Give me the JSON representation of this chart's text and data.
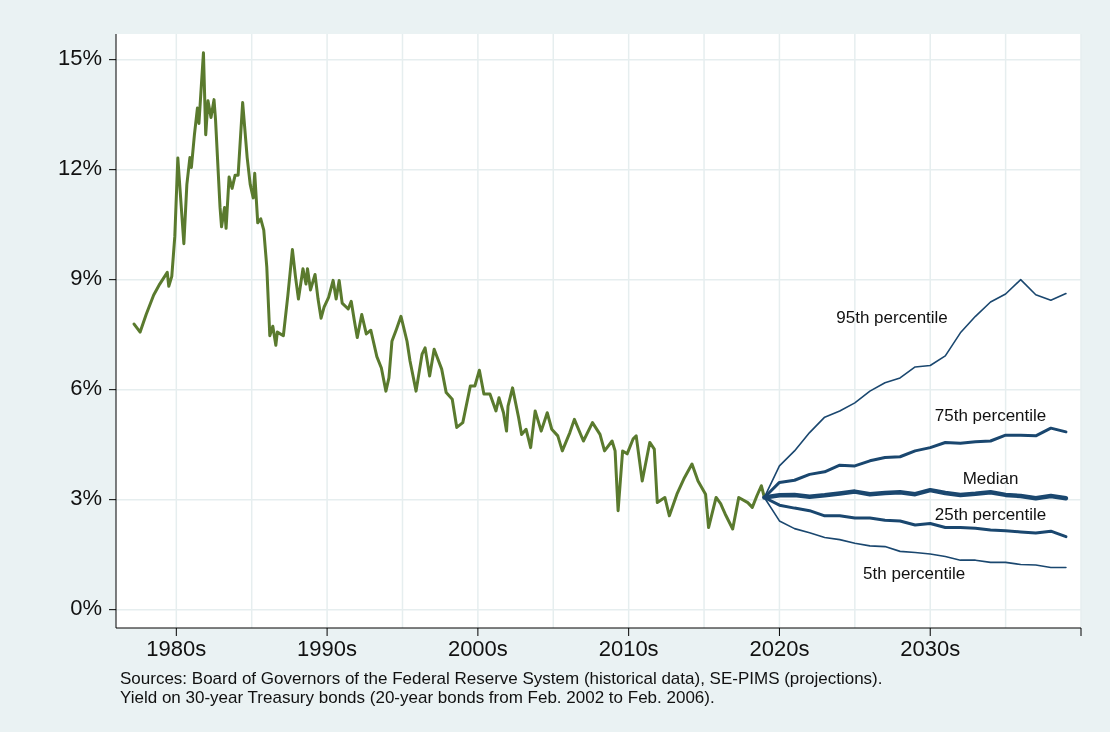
{
  "chart_data": {
    "type": "line",
    "xlim": [
      1976,
      2040
    ],
    "xticks": [
      {
        "value": 1980,
        "label": "1980s"
      },
      {
        "value": 1990,
        "label": "1990s"
      },
      {
        "value": 2000,
        "label": "2000s"
      },
      {
        "value": 2010,
        "label": "2010s"
      },
      {
        "value": 2020,
        "label": "2020s"
      },
      {
        "value": 2030,
        "label": "2030s"
      },
      {
        "value": 2040,
        "label": null
      }
    ],
    "ylim": [
      -0.5,
      15.7
    ],
    "yticks": [
      {
        "value": 0,
        "label": "0%"
      },
      {
        "value": 3,
        "label": "3%"
      },
      {
        "value": 6,
        "label": "6%"
      },
      {
        "value": 9,
        "label": "9%"
      },
      {
        "value": 12,
        "label": "12%"
      },
      {
        "value": 15,
        "label": "15%"
      }
    ],
    "grid": true,
    "series": [
      {
        "color": "#5a7a2e",
        "x": [
          1977.2,
          1977.6,
          1978.0,
          1978.5,
          1978.9,
          1979.4,
          1979.5,
          1979.7,
          1979.9,
          1980.1,
          1980.5,
          1980.7,
          1980.9,
          1981.0,
          1981.2,
          1981.4,
          1981.5,
          1981.8,
          1981.95,
          1982.1,
          1982.3,
          1982.5,
          1982.6,
          1982.9,
          1983.0,
          1983.2,
          1983.3,
          1983.5,
          1983.7,
          1983.9,
          1984.1,
          1984.4,
          1984.7,
          1984.9,
          1985.1,
          1985.2,
          1985.4,
          1985.6,
          1985.8,
          1986.0,
          1986.2,
          1986.4,
          1986.6,
          1986.7,
          1987.1,
          1987.4,
          1987.7,
          1987.9,
          1988.1,
          1988.4,
          1988.6,
          1988.7,
          1988.9,
          1989.2,
          1989.4,
          1989.6,
          1989.8,
          1990.1,
          1990.4,
          1990.6,
          1990.8,
          1991.0,
          1991.4,
          1991.6,
          1991.8,
          1992.0,
          1992.3,
          1992.6,
          1992.9,
          1993.3,
          1993.6,
          1993.9,
          1994.1,
          1994.3,
          1994.6,
          1994.9,
          1995.3,
          1995.5,
          1995.9,
          1996.3,
          1996.5,
          1996.8,
          1997.1,
          1997.6,
          1997.9,
          1998.3,
          1998.6,
          1999.0,
          1999.5,
          1999.8,
          2000.1,
          2000.4,
          2000.8,
          2001.2,
          2001.4,
          2001.7,
          2001.9,
          2002.0,
          2002.3,
          2002.7,
          2002.9,
          2003.2,
          2003.5,
          2003.8,
          2004.2,
          2004.6,
          2004.9,
          2005.3,
          2005.6,
          2006.1,
          2006.4,
          2007.0,
          2007.6,
          2008.1,
          2008.4,
          2008.9,
          2009.1,
          2009.3,
          2009.6,
          2009.9,
          2010.3,
          2010.5,
          2010.9,
          2011.4,
          2011.7,
          2011.9,
          2012.4,
          2012.7,
          2013.2,
          2013.7,
          2014.2,
          2014.6,
          2015.1,
          2015.3,
          2015.8,
          2016.1,
          2016.4,
          2016.9,
          2017.3,
          2017.9,
          2018.2,
          2018.5,
          2018.8,
          2019.0
        ],
        "values": [
          7.79,
          7.57,
          8.05,
          8.58,
          8.88,
          9.2,
          8.82,
          9.09,
          10.18,
          12.32,
          9.98,
          11.6,
          12.33,
          12.06,
          12.95,
          13.68,
          13.26,
          15.19,
          12.95,
          13.88,
          13.42,
          13.91,
          13.37,
          10.97,
          10.44,
          10.97,
          10.4,
          11.8,
          11.49,
          11.85,
          11.85,
          13.83,
          12.33,
          11.6,
          11.23,
          11.9,
          10.55,
          10.66,
          10.35,
          9.35,
          7.47,
          7.73,
          7.21,
          7.57,
          7.47,
          8.58,
          9.82,
          9.09,
          8.47,
          9.3,
          8.88,
          9.3,
          8.72,
          9.14,
          8.47,
          7.95,
          8.25,
          8.52,
          8.98,
          8.47,
          8.98,
          8.36,
          8.2,
          8.41,
          7.9,
          7.42,
          8.05,
          7.52,
          7.62,
          6.9,
          6.59,
          5.96,
          6.32,
          7.32,
          7.65,
          8.0,
          7.32,
          6.78,
          5.96,
          6.97,
          7.14,
          6.37,
          7.1,
          6.56,
          5.92,
          5.74,
          4.97,
          5.1,
          6.1,
          6.1,
          6.53,
          5.88,
          5.88,
          5.42,
          5.78,
          5.37,
          4.87,
          5.55,
          6.05,
          5.24,
          4.78,
          4.92,
          4.42,
          5.42,
          4.87,
          5.37,
          4.92,
          4.74,
          4.33,
          4.83,
          5.19,
          4.6,
          5.1,
          4.78,
          4.33,
          4.6,
          4.33,
          2.7,
          4.33,
          4.25,
          4.66,
          4.74,
          3.51,
          4.56,
          4.38,
          2.92,
          3.06,
          2.56,
          3.15,
          3.6,
          3.97,
          3.51,
          3.15,
          2.24,
          3.06,
          2.89,
          2.61,
          2.2,
          3.06,
          2.92,
          2.79,
          3.1,
          3.38,
          3.06
        ]
      },
      {
        "name": "95th percentile",
        "color": "#1a476f",
        "x": [
          2019,
          2020,
          2021,
          2022,
          2023,
          2024,
          2025,
          2026,
          2027,
          2028,
          2029,
          2030,
          2031,
          2032,
          2033,
          2034,
          2035,
          2036,
          2037,
          2038,
          2039
        ],
        "values": [
          3.06,
          3.92,
          4.33,
          4.83,
          5.25,
          5.42,
          5.64,
          5.96,
          6.19,
          6.32,
          6.62,
          6.66,
          6.92,
          7.55,
          8.0,
          8.39,
          8.61,
          9.0,
          8.59,
          8.44,
          8.62
        ]
      },
      {
        "name": "75th percentile",
        "color": "#1a476f",
        "x": [
          2019,
          2020,
          2021,
          2022,
          2023,
          2024,
          2025,
          2026,
          2027,
          2028,
          2029,
          2030,
          2031,
          2032,
          2033,
          2034,
          2035,
          2036,
          2037,
          2038,
          2039
        ],
        "values": [
          3.06,
          3.47,
          3.53,
          3.69,
          3.76,
          3.94,
          3.92,
          4.06,
          4.15,
          4.17,
          4.33,
          4.42,
          4.56,
          4.54,
          4.58,
          4.6,
          4.76,
          4.76,
          4.74,
          4.95,
          4.85
        ]
      },
      {
        "name": "Median",
        "color": "#1a476f",
        "x": [
          2019,
          2020,
          2021,
          2022,
          2023,
          2024,
          2025,
          2026,
          2027,
          2028,
          2029,
          2030,
          2031,
          2032,
          2033,
          2034,
          2035,
          2036,
          2037,
          2038,
          2039
        ],
        "values": [
          3.06,
          3.12,
          3.13,
          3.08,
          3.12,
          3.17,
          3.22,
          3.15,
          3.18,
          3.2,
          3.15,
          3.26,
          3.18,
          3.13,
          3.16,
          3.2,
          3.13,
          3.1,
          3.04,
          3.1,
          3.04
        ]
      },
      {
        "name": "25th percentile",
        "color": "#1a476f",
        "x": [
          2019,
          2020,
          2021,
          2022,
          2023,
          2024,
          2025,
          2026,
          2027,
          2028,
          2029,
          2030,
          2031,
          2032,
          2033,
          2034,
          2035,
          2036,
          2037,
          2038,
          2039
        ],
        "values": [
          3.06,
          2.85,
          2.77,
          2.7,
          2.56,
          2.56,
          2.5,
          2.5,
          2.44,
          2.42,
          2.31,
          2.35,
          2.24,
          2.24,
          2.22,
          2.17,
          2.15,
          2.12,
          2.09,
          2.14,
          1.99
        ]
      },
      {
        "name": "5th percentile",
        "color": "#1a476f",
        "x": [
          2019,
          2020,
          2021,
          2022,
          2023,
          2024,
          2025,
          2026,
          2027,
          2028,
          2029,
          2030,
          2031,
          2032,
          2033,
          2034,
          2035,
          2036,
          2037,
          2038,
          2039
        ],
        "values": [
          3.06,
          2.42,
          2.21,
          2.1,
          1.97,
          1.91,
          1.81,
          1.74,
          1.72,
          1.59,
          1.56,
          1.52,
          1.45,
          1.35,
          1.35,
          1.29,
          1.29,
          1.23,
          1.22,
          1.15,
          1.15
        ]
      }
    ],
    "annotations": [
      "Sources: Board of Governors of the Federal Reserve System (historical data), SE-PIMS (projections).",
      "Yield on 30-year Treasury bonds (20-year bonds from Feb. 2002 to Feb. 2006)."
    ]
  }
}
